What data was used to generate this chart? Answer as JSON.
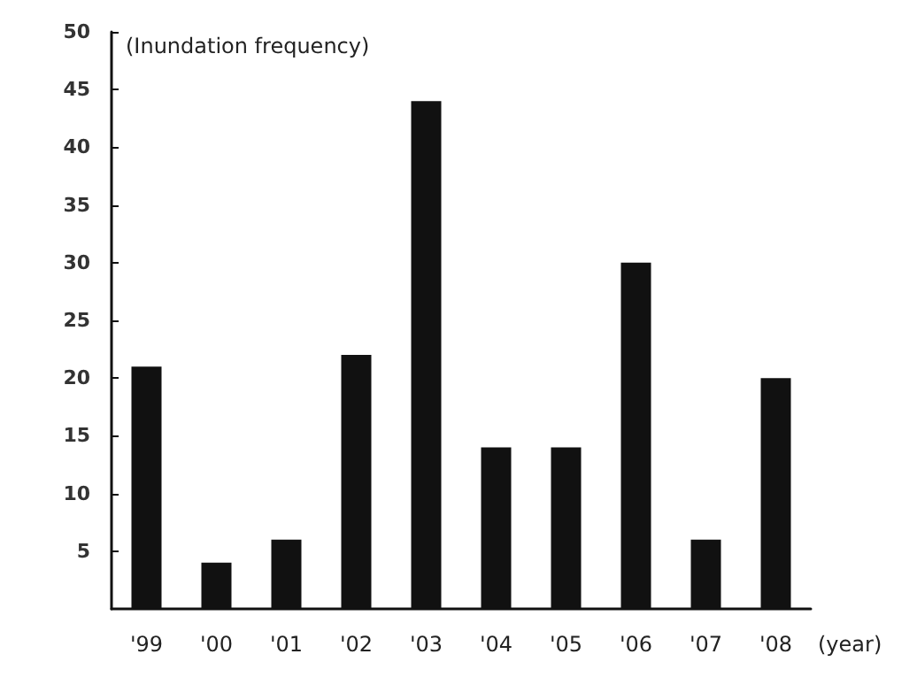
{
  "chart_data": {
    "type": "bar",
    "ylabel": "(Inundation frequency)",
    "xlabel": "(year)",
    "categories": [
      "'99",
      "'00",
      "'01",
      "'02",
      "'03",
      "'04",
      "'05",
      "'06",
      "'07",
      "'08"
    ],
    "values": [
      21,
      4,
      6,
      22,
      44,
      14,
      14,
      30,
      6,
      20
    ],
    "color": "#111111",
    "ylim": [
      0,
      50
    ],
    "yticks": [
      5,
      10,
      15,
      20,
      25,
      30,
      35,
      40,
      45,
      50
    ],
    "grid": false
  }
}
